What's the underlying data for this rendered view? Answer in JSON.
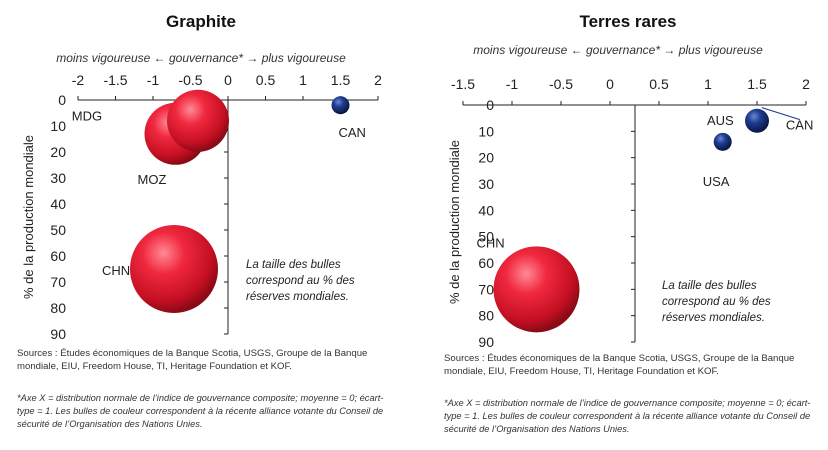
{
  "chart_data": [
    {
      "type": "scatter",
      "title": "Graphite",
      "x_axis_caption": "moins vigoureuse ←    gouvernance*    → plus vigoureuse",
      "ylabel": "% de la production mondiale",
      "xlim": [
        -2,
        2
      ],
      "ylim": [
        0,
        90
      ],
      "y_inverted": true,
      "xticks": [
        "-2",
        "-1.5",
        "-1",
        "-0.5",
        "0",
        "0.5",
        "1",
        "1.5",
        "2"
      ],
      "yticks": [
        "0",
        "10",
        "20",
        "30",
        "40",
        "50",
        "60",
        "70",
        "80",
        "90"
      ],
      "points": [
        {
          "label": "MDG",
          "x": -0.75,
          "y": 4,
          "color": "red",
          "size": 0.3
        },
        {
          "label": "MOZ",
          "x": -0.7,
          "y": 13,
          "color": "red",
          "size": 7
        },
        {
          "label": "",
          "x": -0.4,
          "y": 8,
          "color": "red",
          "size": 6.5
        },
        {
          "label": "CAN",
          "x": 1.5,
          "y": 2,
          "color": "blue",
          "size": 1.5
        },
        {
          "label": "CHN",
          "x": -0.72,
          "y": 65,
          "color": "red",
          "size": 22
        }
      ],
      "annotation": [
        "La taille des bulles",
        "correspond au % des",
        "réserves mondiales."
      ],
      "sources": "Sources : Études économiques de la Banque Scotia, USGS, Groupe de la Banque mondiale, EIU, Freedom House, TI, Heritage Foundation et KOF.",
      "footnote": "*Axe X = distribution normale de l’indice de gouvernance composite; moyenne = 0; écart-type = 1. Les bulles de couleur correspondent à la récente alliance votante du Conseil de sécurité de l’Organisation des Nations Unies."
    },
    {
      "type": "scatter",
      "title": "Terres rares",
      "x_axis_caption": "moins vigoureuse ←    gouvernance*    → plus vigoureuse",
      "ylabel": "% de la production mondiale",
      "xlim": [
        -1.5,
        2
      ],
      "ylim": [
        0,
        90
      ],
      "y_inverted": true,
      "xticks": [
        "-1.5",
        "-1",
        "-0.5",
        "0",
        "0.5",
        "1",
        "1.5",
        "2"
      ],
      "yticks": [
        "0",
        "10",
        "20",
        "30",
        "40",
        "50",
        "60",
        "70",
        "80",
        "90"
      ],
      "points": [
        {
          "label": "AUS",
          "x": 1.5,
          "y": 6,
          "color": "blue",
          "size": 3
        },
        {
          "label": "CAN",
          "x": 1.55,
          "y": 1,
          "color": "blue",
          "size": 0.5
        },
        {
          "label": "USA",
          "x": 1.15,
          "y": 14,
          "color": "blue",
          "size": 1.5
        },
        {
          "label": "CHN",
          "x": -0.75,
          "y": 70,
          "color": "red",
          "size": 30
        }
      ],
      "annotation": [
        "La taille des bulles",
        "correspond au % des",
        "réserves mondiales."
      ],
      "sources": "Sources : Études économiques de la Banque Scotia, USGS, Groupe de la Banque mondiale, EIU, Freedom House, TI, Heritage Foundation et KOF.",
      "footnote": "*Axe X = distribution normale de l’indice de gouvernance composite; moyenne = 0; écart-type = 1. Les bulles de couleur correspondent à la récente alliance votante du Conseil de sécurité de l’Organisation des Nations Unies."
    }
  ],
  "colors": {
    "red_light": "#ff6f7d",
    "red_mid": "#e8132c",
    "red_dark": "#9a0b18",
    "blue_light": "#5a78c8",
    "blue_mid": "#1d3a8f",
    "blue_dark": "#0a1a4a"
  }
}
